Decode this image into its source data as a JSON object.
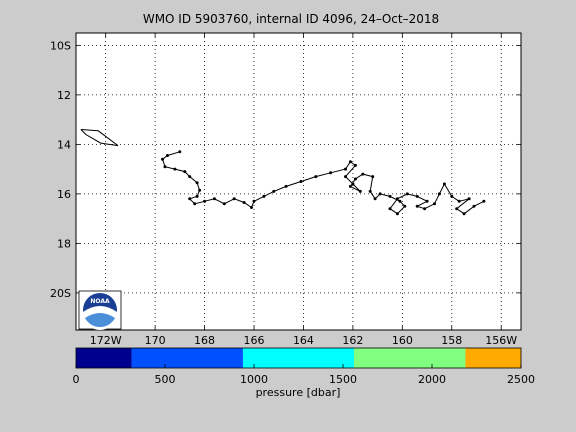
{
  "map": {
    "title": "WMO ID 5903760, internal ID 4096, 24–Oct–2018",
    "lat_ticks": [
      {
        "lat": -10,
        "label": "10S"
      },
      {
        "lat": -12,
        "label": "12"
      },
      {
        "lat": -14,
        "label": "14"
      },
      {
        "lat": -16,
        "label": "16"
      },
      {
        "lat": -18,
        "label": "18"
      },
      {
        "lat": -20,
        "label": "20S"
      }
    ],
    "lon_ticks": [
      {
        "lon": -172,
        "label": "172W"
      },
      {
        "lon": -170,
        "label": "170"
      },
      {
        "lon": -168,
        "label": "168"
      },
      {
        "lon": -166,
        "label": "166"
      },
      {
        "lon": -164,
        "label": "164"
      },
      {
        "lon": -162,
        "label": "162"
      },
      {
        "lon": -160,
        "label": "160"
      },
      {
        "lon": -158,
        "label": "158"
      },
      {
        "lon": -156,
        "label": "156W"
      }
    ],
    "lon_range": [
      -173.2,
      -155.2
    ],
    "lat_range": [
      -21.5,
      -9.5
    ],
    "grid": true,
    "logo_text": "NOAA",
    "island": [
      [
        -173.0,
        -13.4
      ],
      [
        -172.3,
        -13.45
      ],
      [
        -171.5,
        -14.05
      ],
      [
        -172.2,
        -13.95
      ],
      [
        -172.8,
        -13.6
      ],
      [
        -173.0,
        -13.4
      ]
    ],
    "trajectory": [
      [
        -169.0,
        -14.3
      ],
      [
        -169.5,
        -14.45
      ],
      [
        -169.7,
        -14.6
      ],
      [
        -169.6,
        -14.9
      ],
      [
        -169.2,
        -15.0
      ],
      [
        -168.8,
        -15.1
      ],
      [
        -168.6,
        -15.3
      ],
      [
        -168.3,
        -15.55
      ],
      [
        -168.2,
        -15.85
      ],
      [
        -168.3,
        -16.1
      ],
      [
        -168.6,
        -16.2
      ],
      [
        -168.4,
        -16.4
      ],
      [
        -168.0,
        -16.3
      ],
      [
        -167.6,
        -16.2
      ],
      [
        -167.2,
        -16.4
      ],
      [
        -166.8,
        -16.2
      ],
      [
        -166.4,
        -16.35
      ],
      [
        -166.1,
        -16.55
      ],
      [
        -166.0,
        -16.3
      ],
      [
        -165.6,
        -16.1
      ],
      [
        -165.2,
        -15.9
      ],
      [
        -164.7,
        -15.7
      ],
      [
        -164.1,
        -15.5
      ],
      [
        -163.5,
        -15.3
      ],
      [
        -162.9,
        -15.15
      ],
      [
        -162.3,
        -15.0
      ],
      [
        -162.1,
        -14.7
      ],
      [
        -161.9,
        -14.85
      ],
      [
        -162.3,
        -15.3
      ],
      [
        -162.0,
        -15.6
      ],
      [
        -161.7,
        -15.9
      ],
      [
        -162.1,
        -15.7
      ],
      [
        -161.9,
        -15.4
      ],
      [
        -161.6,
        -15.2
      ],
      [
        -161.2,
        -15.3
      ],
      [
        -161.3,
        -15.9
      ],
      [
        -161.1,
        -16.2
      ],
      [
        -160.9,
        -16.0
      ],
      [
        -160.5,
        -16.1
      ],
      [
        -160.1,
        -16.3
      ],
      [
        -159.9,
        -16.5
      ],
      [
        -160.2,
        -16.8
      ],
      [
        -160.5,
        -16.6
      ],
      [
        -160.2,
        -16.2
      ],
      [
        -159.8,
        -16.0
      ],
      [
        -159.4,
        -16.1
      ],
      [
        -159.0,
        -16.3
      ],
      [
        -159.4,
        -16.5
      ],
      [
        -159.1,
        -16.6
      ],
      [
        -158.7,
        -16.4
      ],
      [
        -158.5,
        -16.0
      ],
      [
        -158.3,
        -15.6
      ],
      [
        -158.0,
        -16.1
      ],
      [
        -157.7,
        -16.3
      ],
      [
        -157.3,
        -16.2
      ],
      [
        -157.8,
        -16.6
      ],
      [
        -157.5,
        -16.8
      ],
      [
        -157.1,
        -16.5
      ],
      [
        -156.7,
        -16.3
      ]
    ]
  },
  "colorbar": {
    "label": "pressure [dbar]",
    "ticks": [
      "0",
      "500",
      "1000",
      "1500",
      "2000",
      "2500"
    ],
    "segments": [
      {
        "from": 0,
        "to": 312,
        "color": "#00008f"
      },
      {
        "from": 312,
        "to": 938,
        "color": "#0050ff"
      },
      {
        "from": 938,
        "to": 1562,
        "color": "#00ffff"
      },
      {
        "from": 1562,
        "to": 2188,
        "color": "#80ff80"
      },
      {
        "from": 2188,
        "to": 2500,
        "color": "#ffaa00"
      }
    ],
    "range": [
      0,
      2500
    ]
  }
}
